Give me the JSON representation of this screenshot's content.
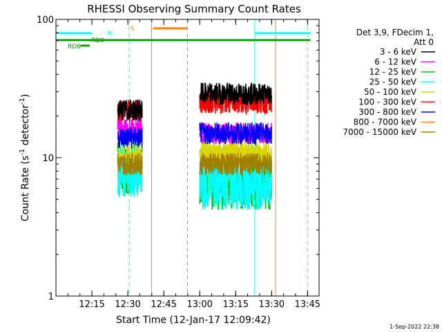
{
  "chart_data": {
    "type": "line",
    "title": "RHESSI Observing Summary Count Rates",
    "xlabel": "Start Time (12-Jan-17 12:09:42)",
    "ylabel_main": "Count Rate (s",
    "ylabel_sup1": "-1",
    "ylabel_mid": " detector",
    "ylabel_sup2": "-1",
    "ylabel_end": ")",
    "xlim_min": [
      12.0,
      13.83
    ],
    "ylim": [
      1,
      100
    ],
    "y_scale": "log",
    "x_ticks": [
      {
        "label": "12:15",
        "t": 12.25
      },
      {
        "label": "12:30",
        "t": 12.5
      },
      {
        "label": "12:45",
        "t": 12.75
      },
      {
        "label": "13:00",
        "t": 13.0
      },
      {
        "label": "13:15",
        "t": 13.25
      },
      {
        "label": "13:30",
        "t": 13.5
      },
      {
        "label": "13:45",
        "t": 13.75
      }
    ],
    "y_ticks": [
      {
        "label": "1",
        "v": 1
      },
      {
        "label": "10",
        "v": 10
      },
      {
        "label": "100",
        "v": 100
      }
    ],
    "legend_title": [
      "Det 3,9, FDecim 1,",
      "Att 0"
    ],
    "series": [
      {
        "name": "3 - 6 keV",
        "color": "#000000",
        "seg1": 22,
        "seg2": 29
      },
      {
        "name": "6 - 12 keV",
        "color": "#ff00ff",
        "seg1": 16,
        "seg2": 15
      },
      {
        "name": "12 - 25 keV",
        "color": "#00c000",
        "seg1": 8.5,
        "seg2": 6.5
      },
      {
        "name": "25 - 50 keV",
        "color": "#00ffff",
        "seg1": 8,
        "seg2": 6.5
      },
      {
        "name": "50 - 100 keV",
        "color": "#d8d800",
        "seg1": 10.5,
        "seg2": 11
      },
      {
        "name": "100 - 300 keV",
        "color": "#ff0000",
        "seg1": 22,
        "seg2": 25
      },
      {
        "name": "300 - 800 keV",
        "color": "#0000ff",
        "seg1": 14,
        "seg2": 15
      },
      {
        "name": "800 - 7000 keV",
        "color": "#ff8000",
        "seg1": 7.5,
        "seg2": 10
      },
      {
        "name": "7000 - 15000 keV",
        "color": "#a08000",
        "seg1": 9,
        "seg2": 9
      }
    ],
    "data_segments": [
      [
        12.43,
        12.6
      ],
      [
        13.0,
        13.5
      ]
    ],
    "flags": [
      {
        "label": "N",
        "color": "#00ffff"
      },
      {
        "label": "RD0",
        "color": "#00a000"
      },
      {
        "label": "RD6",
        "color": "#00a000"
      },
      {
        "label": "S",
        "color": "#ff8000"
      }
    ],
    "footer_date": "1-Sep-2022 22:38"
  }
}
